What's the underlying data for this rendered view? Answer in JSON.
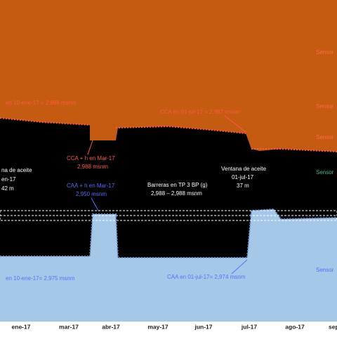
{
  "x_labels": [
    "ene-17",
    "mar-17",
    "abr-17",
    "may-17",
    "jun-17",
    "jul-17",
    "ago-17",
    "sep"
  ],
  "sensor_labels": [
    "Sensor",
    "Sensor",
    "Sensor",
    "Sensor",
    "Sensor"
  ],
  "annotations": {
    "cca_ene": "en 10-ene-17 = 2,988 msnm",
    "cca_jul": "CCA en 01-jul-17 = 2,987 msnm",
    "cca_mar": [
      "CCA + h en Mar-17",
      "2,988 msnm"
    ],
    "ventana_ene": [
      "na de aceite",
      "en-17",
      "42 m"
    ],
    "caa_mar": [
      "CAA + h en Mar-17",
      "2,950 msnm"
    ],
    "barreras": [
      "Barreras en TP 3 BP (g)",
      "2,988 – 2,988 msnm"
    ],
    "ventana_jul": [
      "Ventana de aceite",
      "01-jul-17",
      "37 m"
    ],
    "caa_ene": "en 10-ene-17= 2,975 msnm",
    "caa_jul": "CAA en 01-jul-17= 2,974 msnm"
  }
}
